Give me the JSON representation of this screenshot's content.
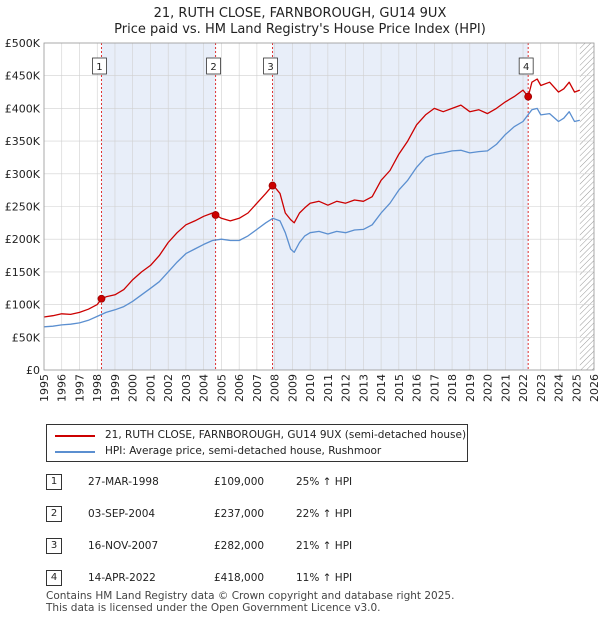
{
  "chart_data": {
    "type": "line",
    "title": "21, RUTH CLOSE, FARNBOROUGH, GU14 9UX",
    "subtitle": "Price paid vs. HM Land Registry's House Price Index (HPI)",
    "xlabel": "",
    "ylabel": "",
    "xlim": [
      1995,
      2026
    ],
    "ylim": [
      0,
      500000
    ],
    "y_ticks": [
      0,
      50000,
      100000,
      150000,
      200000,
      250000,
      300000,
      350000,
      400000,
      450000,
      500000
    ],
    "y_tick_labels": [
      "£0",
      "£50K",
      "£100K",
      "£150K",
      "£200K",
      "£250K",
      "£300K",
      "£350K",
      "£400K",
      "£450K",
      "£500K"
    ],
    "x_ticks": [
      1995,
      1996,
      1997,
      1998,
      1999,
      2000,
      2001,
      2002,
      2003,
      2004,
      2005,
      2006,
      2007,
      2008,
      2009,
      2010,
      2011,
      2012,
      2013,
      2014,
      2015,
      2016,
      2017,
      2018,
      2019,
      2020,
      2021,
      2022,
      2023,
      2024,
      2025,
      2026
    ],
    "x_tick_labels": [
      "1995",
      "1996",
      "1997",
      "1998",
      "1999",
      "2000",
      "2001",
      "2002",
      "2003",
      "2004",
      "2005",
      "2006",
      "2007",
      "2008",
      "2009",
      "2010",
      "2011",
      "2012",
      "2013",
      "2014",
      "2015",
      "2016",
      "2017",
      "2018",
      "2019",
      "2020",
      "2021",
      "2022",
      "2023",
      "2024",
      "2025",
      "2026"
    ],
    "grid": true,
    "series": [
      {
        "name": "21, RUTH CLOSE, FARNBOROUGH, GU14 9UX (semi-detached house)",
        "color": "#cc0000",
        "x": [
          1995.0,
          1995.5,
          1996.0,
          1996.5,
          1997.0,
          1997.5,
          1998.0,
          1998.24,
          1998.5,
          1999.0,
          1999.5,
          2000.0,
          2000.5,
          2001.0,
          2001.5,
          2002.0,
          2002.5,
          2003.0,
          2003.5,
          2004.0,
          2004.5,
          2004.67,
          2005.0,
          2005.5,
          2006.0,
          2006.5,
          2007.0,
          2007.5,
          2007.88,
          2008.0,
          2008.3,
          2008.6,
          2008.9,
          2009.1,
          2009.4,
          2009.7,
          2010.0,
          2010.5,
          2011.0,
          2011.5,
          2012.0,
          2012.5,
          2013.0,
          2013.5,
          2014.0,
          2014.5,
          2015.0,
          2015.5,
          2016.0,
          2016.5,
          2017.0,
          2017.5,
          2018.0,
          2018.5,
          2019.0,
          2019.5,
          2020.0,
          2020.5,
          2021.0,
          2021.5,
          2022.0,
          2022.29,
          2022.5,
          2022.8,
          2023.0,
          2023.5,
          2024.0,
          2024.3,
          2024.6,
          2024.9,
          2025.2
        ],
        "values": [
          81000,
          83000,
          86000,
          85000,
          88000,
          93000,
          100000,
          109000,
          112000,
          115000,
          123000,
          138000,
          150000,
          160000,
          175000,
          195000,
          210000,
          222000,
          228000,
          235000,
          240000,
          237000,
          232000,
          228000,
          232000,
          240000,
          255000,
          270000,
          282000,
          280000,
          270000,
          240000,
          230000,
          225000,
          240000,
          248000,
          255000,
          258000,
          252000,
          258000,
          255000,
          260000,
          258000,
          265000,
          290000,
          305000,
          330000,
          350000,
          375000,
          390000,
          400000,
          395000,
          400000,
          405000,
          395000,
          398000,
          392000,
          400000,
          410000,
          418000,
          428000,
          418000,
          440000,
          445000,
          435000,
          440000,
          425000,
          430000,
          440000,
          425000,
          428000
        ]
      },
      {
        "name": "HPI: Average price, semi-detached house, Rushmoor",
        "color": "#5b8fd0",
        "x": [
          1995.0,
          1995.5,
          1996.0,
          1996.5,
          1997.0,
          1997.5,
          1998.0,
          1998.5,
          1999.0,
          1999.5,
          2000.0,
          2000.5,
          2001.0,
          2001.5,
          2002.0,
          2002.5,
          2003.0,
          2003.5,
          2004.0,
          2004.5,
          2005.0,
          2005.5,
          2006.0,
          2006.5,
          2007.0,
          2007.5,
          2007.9,
          2008.3,
          2008.6,
          2008.9,
          2009.1,
          2009.4,
          2009.7,
          2010.0,
          2010.5,
          2011.0,
          2011.5,
          2012.0,
          2012.5,
          2013.0,
          2013.5,
          2014.0,
          2014.5,
          2015.0,
          2015.5,
          2016.0,
          2016.5,
          2017.0,
          2017.5,
          2018.0,
          2018.5,
          2019.0,
          2019.5,
          2020.0,
          2020.5,
          2021.0,
          2021.5,
          2022.0,
          2022.5,
          2022.8,
          2023.0,
          2023.5,
          2024.0,
          2024.3,
          2024.6,
          2024.9,
          2025.2
        ],
        "values": [
          66000,
          67000,
          69000,
          70000,
          72000,
          76000,
          82000,
          88000,
          92000,
          97000,
          105000,
          115000,
          125000,
          135000,
          150000,
          165000,
          178000,
          185000,
          192000,
          198000,
          200000,
          198000,
          198000,
          205000,
          215000,
          225000,
          232000,
          228000,
          210000,
          185000,
          180000,
          195000,
          205000,
          210000,
          212000,
          208000,
          212000,
          210000,
          214000,
          215000,
          222000,
          240000,
          255000,
          275000,
          290000,
          310000,
          325000,
          330000,
          332000,
          335000,
          336000,
          332000,
          334000,
          335000,
          345000,
          360000,
          372000,
          380000,
          398000,
          400000,
          390000,
          392000,
          380000,
          385000,
          395000,
          380000,
          382000
        ]
      }
    ],
    "transactions": [
      {
        "num": "1",
        "x": 1998.24,
        "y": 109000,
        "date": "27-MAR-1998",
        "price": "£109,000",
        "hpi": "25% ↑ HPI"
      },
      {
        "num": "2",
        "x": 2004.67,
        "y": 237000,
        "date": "03-SEP-2004",
        "price": "£237,000",
        "hpi": "22% ↑ HPI"
      },
      {
        "num": "3",
        "x": 2007.88,
        "y": 282000,
        "date": "16-NOV-2007",
        "price": "£282,000",
        "hpi": "21% ↑ HPI"
      },
      {
        "num": "4",
        "x": 2022.29,
        "y": 418000,
        "date": "14-APR-2022",
        "price": "£418,000",
        "hpi": "11% ↑ HPI"
      }
    ],
    "shaded_ranges": [
      [
        1998.24,
        2004.67
      ],
      [
        2007.88,
        2022.29
      ]
    ],
    "hatched_range": [
      2025.2,
      2026.0
    ]
  },
  "legend": {
    "property_label": "21, RUTH CLOSE, FARNBOROUGH, GU14 9UX (semi-detached house)",
    "hpi_label": "HPI: Average price, semi-detached house, Rushmoor"
  },
  "footer": {
    "line1": "Contains HM Land Registry data © Crown copyright and database right 2025.",
    "line2": "This data is licensed under the Open Government Licence v3.0."
  },
  "colors": {
    "property": "#cc0000",
    "hpi": "#5b8fd0",
    "shade": "#e8eef9",
    "grid": "#d0d0d0"
  }
}
